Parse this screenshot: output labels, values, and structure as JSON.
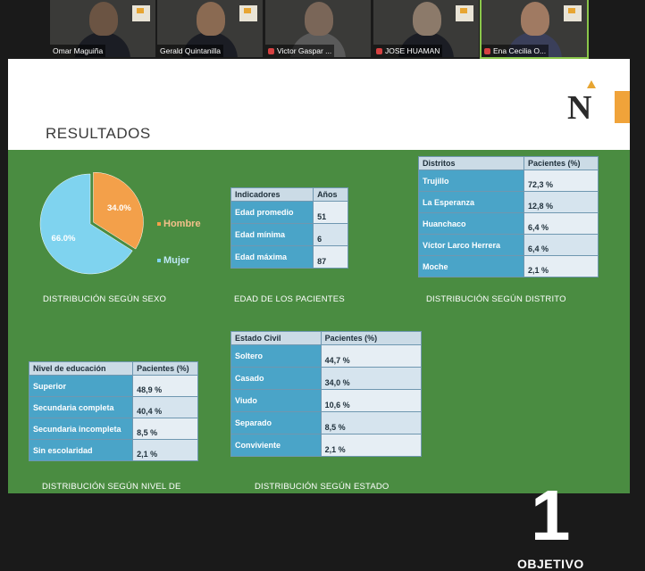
{
  "participants": [
    {
      "name": "Omar Maguiña",
      "muted": false
    },
    {
      "name": "Gerald Quintanilla",
      "muted": false
    },
    {
      "name": "Victor Gaspar ...",
      "muted": true
    },
    {
      "name": "JOSE HUAMAN",
      "muted": true
    },
    {
      "name": "Ena Cecilia O...",
      "muted": true
    }
  ],
  "slide": {
    "title": "RESULTADOS",
    "big_number": "1",
    "big_label": "OBJETIVO"
  },
  "chart_data": {
    "type": "pie",
    "title": "",
    "slices": [
      {
        "label": "Hombre",
        "value": 34.0,
        "display": "34.0%",
        "color": "#f3a04a"
      },
      {
        "label": "Mujer",
        "value": 66.0,
        "display": "66.0%",
        "color": "#7fd3ef"
      }
    ],
    "caption": "DISTRIBUCIÓN SEGÚN SEXO"
  },
  "tables": {
    "edad": {
      "caption": "EDAD DE LOS PACIENTES",
      "headers": [
        "Indicadores",
        "Años"
      ],
      "rows": [
        [
          "Edad promedio",
          "51"
        ],
        [
          "Edad mínima",
          "6"
        ],
        [
          "Edad máxima",
          "87"
        ]
      ]
    },
    "distrito": {
      "caption": "DISTRIBUCIÓN SEGÚN DISTRITO",
      "headers": [
        "Distritos",
        "Pacientes (%)"
      ],
      "rows": [
        [
          "Trujillo",
          "72,3 %"
        ],
        [
          "La Esperanza",
          "12,8 %"
        ],
        [
          "Huanchaco",
          "6,4 %"
        ],
        [
          "Víctor Larco Herrera",
          "6,4 %"
        ],
        [
          "Moche",
          "2,1 %"
        ]
      ]
    },
    "educacion": {
      "caption": "DISTRIBUCIÓN SEGÚN NIVEL DE",
      "headers": [
        "Nivel de educación",
        "Pacientes (%)"
      ],
      "rows": [
        [
          "Superior",
          "48,9 %"
        ],
        [
          "Secundaria completa",
          "40,4 %"
        ],
        [
          "Secundaria incompleta",
          "8,5 %"
        ],
        [
          "Sin escolaridad",
          "2,1 %"
        ]
      ]
    },
    "civil": {
      "caption": "DISTRIBUCIÓN SEGÚN ESTADO",
      "headers": [
        "Estado Civil",
        "Pacientes (%)"
      ],
      "rows": [
        [
          "Soltero",
          "44,7 %"
        ],
        [
          "Casado",
          "34,0 %"
        ],
        [
          "Viudo",
          "10,6 %"
        ],
        [
          "Separado",
          "8,5 %"
        ],
        [
          "Conviviente",
          "2,1 %"
        ]
      ]
    }
  }
}
